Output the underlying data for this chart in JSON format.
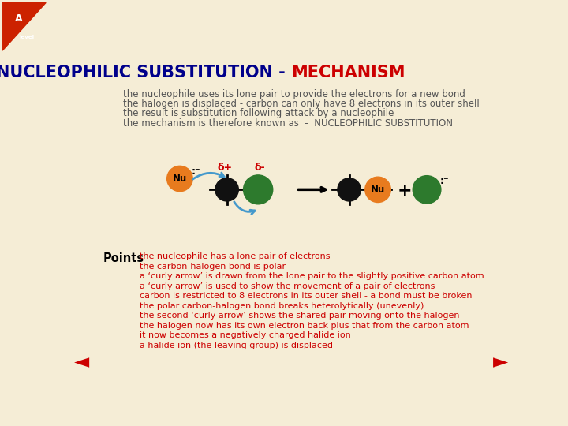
{
  "title_part1": "NUCLEOPHILIC SUBSTITUTION - ",
  "title_part2": "MECHANISM",
  "title_color1": "#00008B",
  "title_color2": "#CC0000",
  "bg_color": "#F5EDD6",
  "intro_lines": [
    "the nucleophile uses its lone pair to provide the electrons for a new bond",
    "the halogen is displaced - carbon can only have 8 electrons in its outer shell",
    "the result is substitution following attack by a nucleophile",
    "the mechanism is therefore known as  -  NUCLEOPHILIC SUBSTITUTION"
  ],
  "intro_color": "#555555",
  "points_label": "Points",
  "points_color": "#000000",
  "bullet_lines": [
    "the nucleophile has a lone pair of electrons",
    "the carbon-halogen bond is polar",
    "a ‘curly arrow’ is drawn from the lone pair to the slightly positive carbon atom",
    "a ‘curly arrow’ is used to show the movement of a pair of electrons",
    "carbon is restricted to 8 electrons in its outer shell - a bond must be broken",
    "the polar carbon-halogen bond breaks heterolytically (unevenly)",
    "the second ‘curly arrow’ shows the shared pair moving onto the halogen",
    "the halogen now has its own electron back plus that from the carbon atom",
    "it now becomes a negatively charged halide ion",
    "a halide ion (the leaving group) is displaced"
  ],
  "bullet_color": "#CC0000",
  "nav_color": "#CC0000",
  "orange_color": "#E87B1E",
  "black_color": "#111111",
  "green_color": "#2D7A2D",
  "arrow_color": "#4499CC",
  "delta_color": "#CC0000",
  "logo_bg": "#CC4400",
  "logo_text_color": "#FFFFFF"
}
